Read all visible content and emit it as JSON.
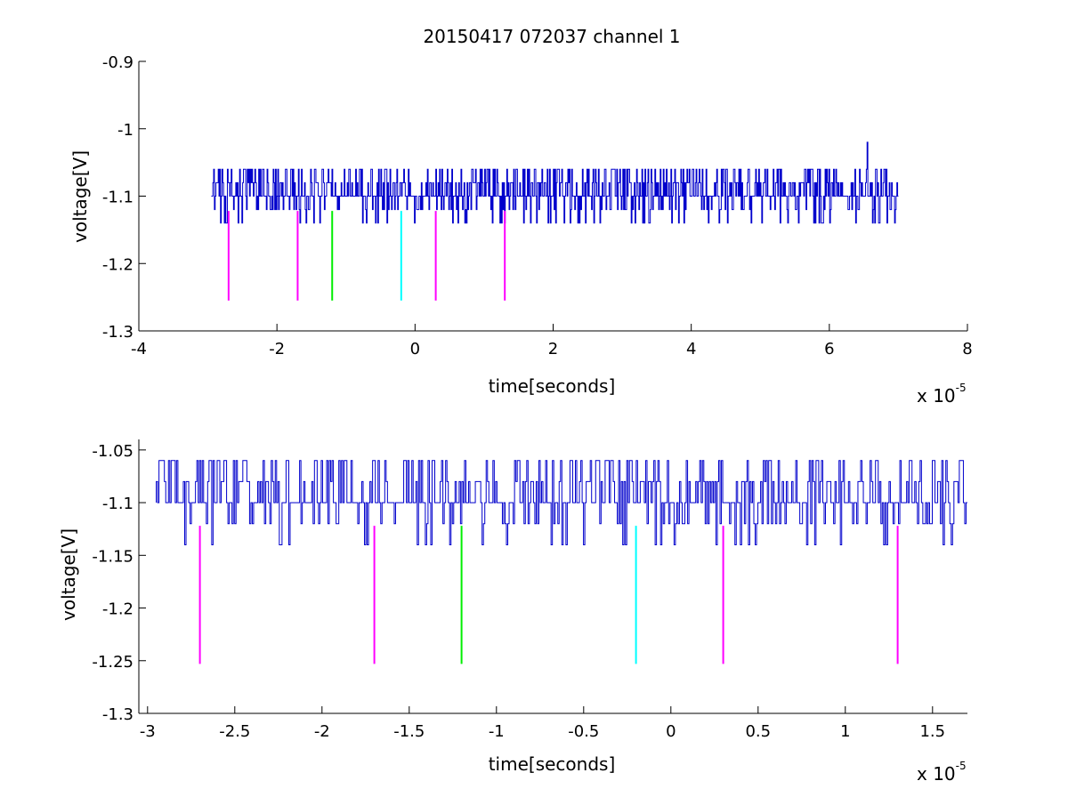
{
  "figure": {
    "title": "20150417 072037 channel 1"
  },
  "colors": {
    "signal": "#0000cc",
    "magenta": "#ff00ff",
    "green": "#00ee00",
    "cyan": "#00ffff",
    "axis": "#000000"
  },
  "chart_data": [
    {
      "type": "line",
      "title": "20150417 072037 channel 1",
      "xlabel": "time[seconds]",
      "ylabel": "voltage[V]",
      "x_exponent_label": {
        "base": "x 10",
        "exponent": "-5"
      },
      "xlim": [
        -4,
        8
      ],
      "ylim": [
        -1.3,
        -0.9
      ],
      "xticks": [
        -4,
        -2,
        0,
        2,
        4,
        6,
        8
      ],
      "xtick_labels": [
        "-4",
        "-2",
        "0",
        "2",
        "4",
        "6",
        "8"
      ],
      "yticks": [
        -1.3,
        -1.2,
        -1.1,
        -1.0,
        -0.9
      ],
      "ytick_labels": [
        "-1.3",
        "-1.2",
        "-1.1",
        "-1",
        "-0.9"
      ],
      "grid": false,
      "signal": {
        "x_start": -2.95,
        "x_end": 7.0,
        "baseline": -1.1,
        "levels": [
          -1.14,
          -1.12,
          -1.1,
          -1.08,
          -1.06
        ],
        "spike": {
          "x": 6.55,
          "y": -1.02
        }
      },
      "markers": [
        {
          "x": -2.7,
          "y_top": -1.122,
          "y_bottom": -1.255,
          "color": "magenta"
        },
        {
          "x": -1.7,
          "y_top": -1.122,
          "y_bottom": -1.255,
          "color": "magenta"
        },
        {
          "x": -1.2,
          "y_top": -1.122,
          "y_bottom": -1.255,
          "color": "green"
        },
        {
          "x": -0.2,
          "y_top": -1.122,
          "y_bottom": -1.255,
          "color": "cyan"
        },
        {
          "x": 0.3,
          "y_top": -1.122,
          "y_bottom": -1.255,
          "color": "magenta"
        },
        {
          "x": 1.3,
          "y_top": -1.122,
          "y_bottom": -1.255,
          "color": "magenta"
        }
      ]
    },
    {
      "type": "line",
      "xlabel": "time[seconds]",
      "ylabel": "voltage[V]",
      "x_exponent_label": {
        "base": "x 10",
        "exponent": "-5"
      },
      "xlim": [
        -3.05,
        1.7
      ],
      "ylim": [
        -1.3,
        -1.04
      ],
      "xticks": [
        -3,
        -2.5,
        -2,
        -1.5,
        -1,
        -0.5,
        0,
        0.5,
        1,
        1.5
      ],
      "xtick_labels": [
        "-3",
        "-2.5",
        "-2",
        "-1.5",
        "-1",
        "-0.5",
        "0",
        "0.5",
        "1",
        "1.5"
      ],
      "yticks": [
        -1.3,
        -1.25,
        -1.2,
        -1.15,
        -1.1,
        -1.05
      ],
      "ytick_labels": [
        "-1.3",
        "-1.25",
        "-1.2",
        "-1.15",
        "-1.1",
        "-1.05"
      ],
      "grid": false,
      "signal": {
        "x_start": -2.95,
        "x_end": 1.7,
        "baseline": -1.1,
        "levels": [
          -1.14,
          -1.12,
          -1.1,
          -1.08,
          -1.06
        ]
      },
      "markers": [
        {
          "x": -2.7,
          "y_top": -1.122,
          "y_bottom": -1.253,
          "color": "magenta"
        },
        {
          "x": -1.7,
          "y_top": -1.122,
          "y_bottom": -1.253,
          "color": "magenta"
        },
        {
          "x": -1.2,
          "y_top": -1.122,
          "y_bottom": -1.253,
          "color": "green"
        },
        {
          "x": -0.2,
          "y_top": -1.122,
          "y_bottom": -1.253,
          "color": "cyan"
        },
        {
          "x": 0.3,
          "y_top": -1.122,
          "y_bottom": -1.253,
          "color": "magenta"
        },
        {
          "x": 1.3,
          "y_top": -1.122,
          "y_bottom": -1.253,
          "color": "magenta"
        }
      ]
    }
  ]
}
